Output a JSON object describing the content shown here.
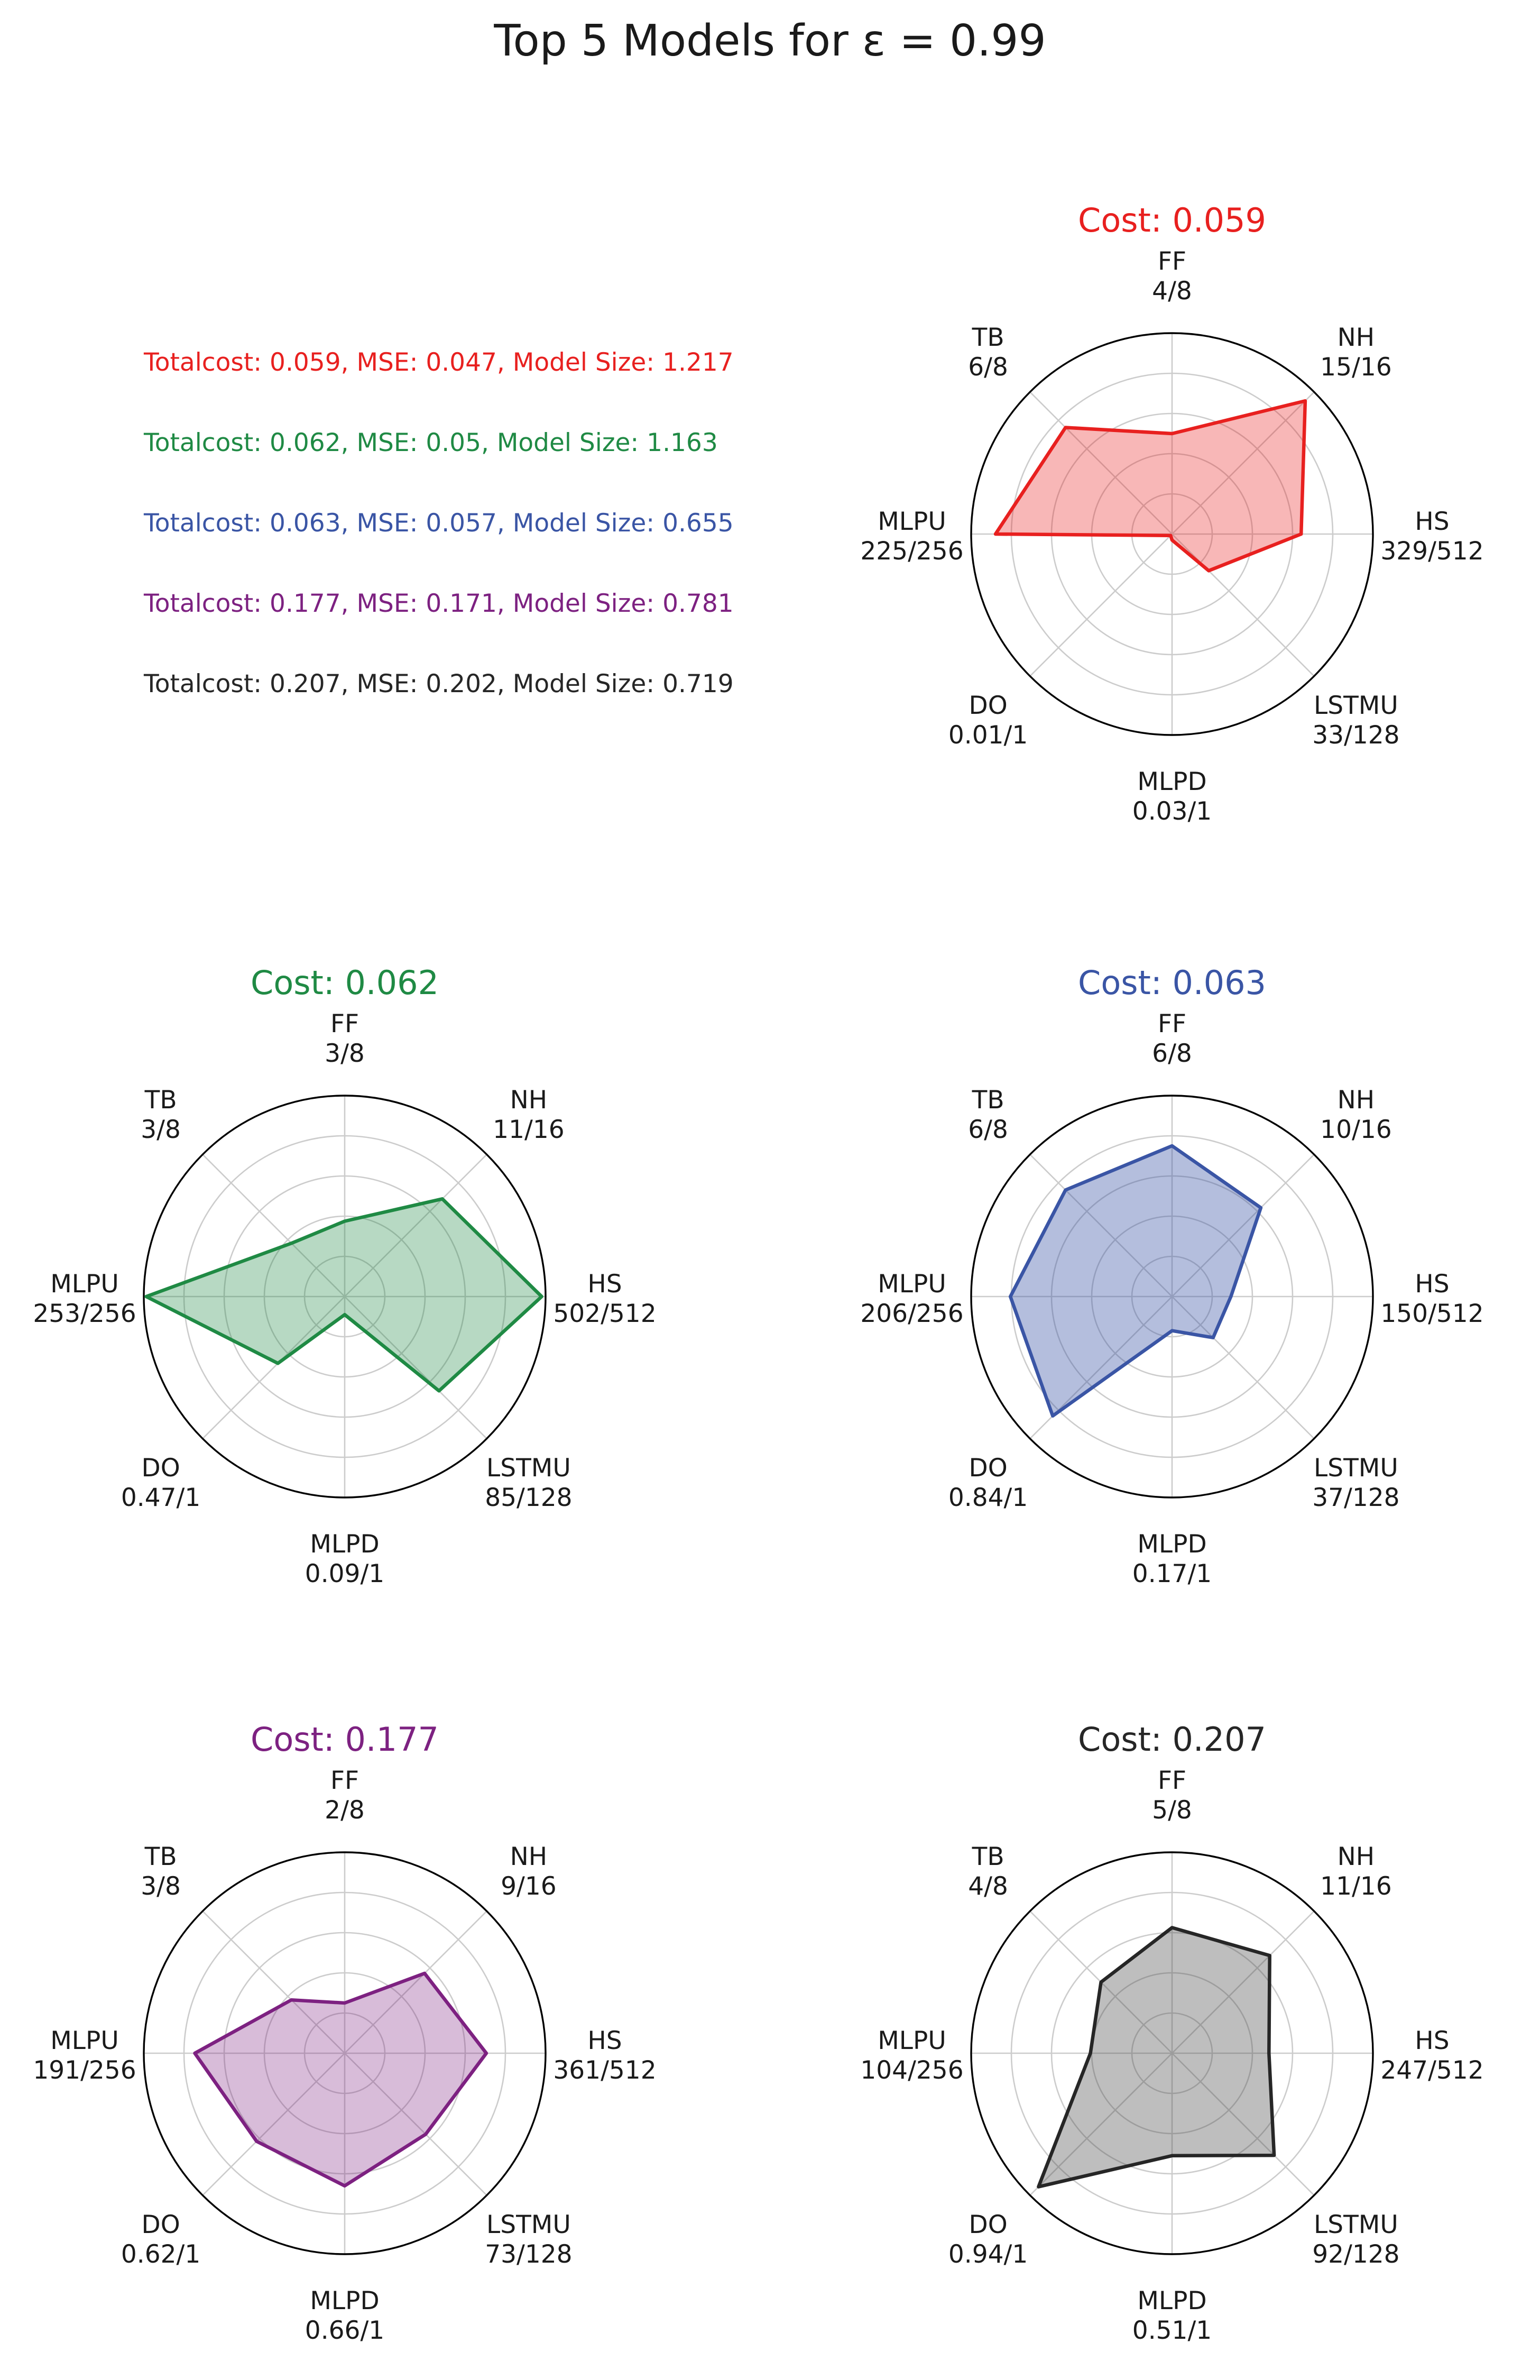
{
  "page": {
    "title": "Top 5 Models for ε = 0.99"
  },
  "legend": {
    "items": [
      {
        "text": "Totalcost: 0.059, MSE: 0.047, Model Size: 1.217",
        "color": "#e8201f"
      },
      {
        "text": "Totalcost: 0.062, MSE: 0.05, Model Size: 1.163",
        "color": "#1f8a44"
      },
      {
        "text": "Totalcost: 0.063, MSE: 0.057, Model Size: 0.655",
        "color": "#3a55a5"
      },
      {
        "text": "Totalcost: 0.177, MSE: 0.171, Model Size: 0.781",
        "color": "#7d2181"
      },
      {
        "text": "Totalcost: 0.207, MSE: 0.202, Model Size: 0.719",
        "color": "#262626"
      }
    ]
  },
  "chart_data": [
    {
      "type": "radar",
      "title": "Cost: 0.059",
      "color": "#e8201f",
      "fill": "rgba(232,32,31,0.32)",
      "axes": [
        "FF",
        "NH",
        "HS",
        "LSTMU",
        "MLPD",
        "DO",
        "MLPU",
        "TB"
      ],
      "tick_labels": [
        "4/8",
        "15/16",
        "329/512",
        "33/128",
        "0.03/1",
        "0.01/1",
        "225/256",
        "6/8"
      ],
      "values": [
        4,
        15,
        329,
        33,
        0.03,
        0.01,
        225,
        6
      ],
      "max_values": [
        8,
        16,
        512,
        128,
        1,
        1,
        256,
        8
      ],
      "rlim": [
        0,
        1
      ],
      "grid_rings": [
        0.2,
        0.4,
        0.6,
        0.8
      ],
      "grid": true
    },
    {
      "type": "radar",
      "title": "Cost: 0.062",
      "color": "#1f8a44",
      "fill": "rgba(31,138,68,0.32)",
      "axes": [
        "FF",
        "NH",
        "HS",
        "LSTMU",
        "MLPD",
        "DO",
        "MLPU",
        "TB"
      ],
      "tick_labels": [
        "3/8",
        "11/16",
        "502/512",
        "85/128",
        "0.09/1",
        "0.47/1",
        "253/256",
        "3/8"
      ],
      "values": [
        3,
        11,
        502,
        85,
        0.09,
        0.47,
        253,
        3
      ],
      "max_values": [
        8,
        16,
        512,
        128,
        1,
        1,
        256,
        8
      ],
      "rlim": [
        0,
        1
      ],
      "grid_rings": [
        0.2,
        0.4,
        0.6,
        0.8
      ],
      "grid": true
    },
    {
      "type": "radar",
      "title": "Cost: 0.063",
      "color": "#3a55a5",
      "fill": "rgba(58,85,165,0.38)",
      "axes": [
        "FF",
        "NH",
        "HS",
        "LSTMU",
        "MLPD",
        "DO",
        "MLPU",
        "TB"
      ],
      "tick_labels": [
        "6/8",
        "10/16",
        "150/512",
        "37/128",
        "0.17/1",
        "0.84/1",
        "206/256",
        "6/8"
      ],
      "values": [
        6,
        10,
        150,
        37,
        0.17,
        0.84,
        206,
        6
      ],
      "max_values": [
        8,
        16,
        512,
        128,
        1,
        1,
        256,
        8
      ],
      "rlim": [
        0,
        1
      ],
      "grid_rings": [
        0.2,
        0.4,
        0.6,
        0.8
      ],
      "grid": true
    },
    {
      "type": "radar",
      "title": "Cost: 0.177",
      "color": "#7d2181",
      "fill": "rgba(125,33,129,0.30)",
      "axes": [
        "FF",
        "NH",
        "HS",
        "LSTMU",
        "MLPD",
        "DO",
        "MLPU",
        "TB"
      ],
      "tick_labels": [
        "2/8",
        "9/16",
        "361/512",
        "73/128",
        "0.66/1",
        "0.62/1",
        "191/256",
        "3/8"
      ],
      "values": [
        2,
        9,
        361,
        73,
        0.66,
        0.62,
        191,
        3
      ],
      "max_values": [
        8,
        16,
        512,
        128,
        1,
        1,
        256,
        8
      ],
      "rlim": [
        0,
        1
      ],
      "grid_rings": [
        0.2,
        0.4,
        0.6,
        0.8
      ],
      "grid": true
    },
    {
      "type": "radar",
      "title": "Cost: 0.207",
      "color": "#262626",
      "fill": "rgba(70,70,70,0.35)",
      "axes": [
        "FF",
        "NH",
        "HS",
        "LSTMU",
        "MLPD",
        "DO",
        "MLPU",
        "TB"
      ],
      "tick_labels": [
        "5/8",
        "11/16",
        "247/512",
        "92/128",
        "0.51/1",
        "0.94/1",
        "104/256",
        "4/8"
      ],
      "values": [
        5,
        11,
        247,
        92,
        0.51,
        0.94,
        104,
        4
      ],
      "max_values": [
        8,
        16,
        512,
        128,
        1,
        1,
        256,
        8
      ],
      "rlim": [
        0,
        1
      ],
      "grid_rings": [
        0.2,
        0.4,
        0.6,
        0.8
      ],
      "grid": true
    }
  ]
}
